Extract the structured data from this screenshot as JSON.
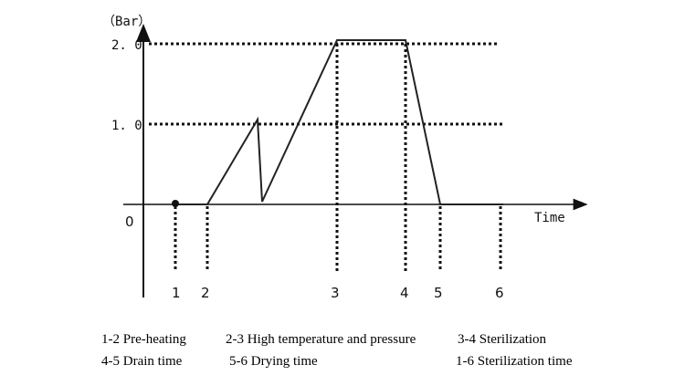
{
  "y_unit": "（Bar）",
  "x_title": "Time",
  "origin": "0",
  "y_ticks": [
    "2. 0",
    "1. 0"
  ],
  "x_points": [
    "1",
    "2",
    "3",
    "4",
    "5",
    "6"
  ],
  "chart_data": {
    "type": "line",
    "ylabel": "（Bar）",
    "xlabel": "Time",
    "points": [
      "1",
      "2",
      "3",
      "4",
      "5",
      "6"
    ],
    "y_levels": [
      1.0,
      2.0
    ],
    "profile": [
      {
        "at": "1",
        "y": 0
      },
      {
        "at": "2",
        "y": 0
      },
      {
        "note": "peak before 3",
        "y": 1.05
      },
      {
        "note": "drop",
        "y": 0.05
      },
      {
        "at": "3",
        "y": 2.0
      },
      {
        "at": "4",
        "y": 2.0
      },
      {
        "at": "5",
        "y": 0
      },
      {
        "at": "6",
        "y": 0
      }
    ]
  },
  "legend": [
    "1-2 Pre-heating",
    "2-3 High temperature and pressure",
    "3-4 Sterilization",
    "4-5 Drain time",
    "5-6 Drying time",
    "1-6 Sterilization time"
  ]
}
